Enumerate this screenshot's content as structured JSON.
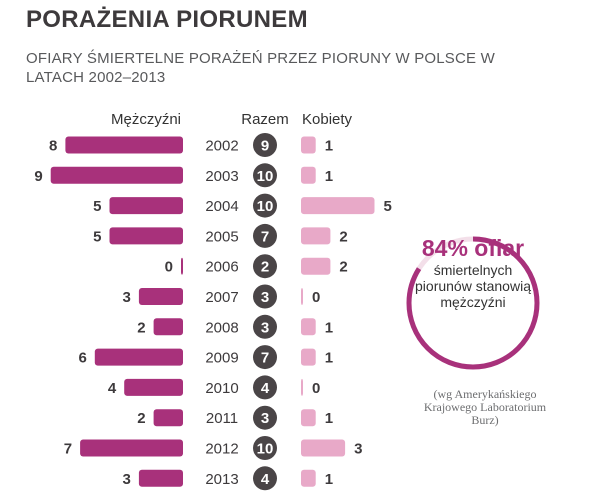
{
  "title": "PORAŻENIA PIORUNEM",
  "subtitle": "OFIARY ŚMIERTELNE PORAŻEŃ PRZEZ PIORUNY W POLSCE W LATACH 2002–2013",
  "colors": {
    "men": "#a8317b",
    "women": "#e8a9c8",
    "total_circle": "#4a4547",
    "ring": "#a8317b"
  },
  "chart_data": {
    "type": "bar",
    "categories": [
      "2002",
      "2003",
      "2004",
      "2005",
      "2006",
      "2007",
      "2008",
      "2009",
      "2010",
      "2011",
      "2012",
      "2013"
    ],
    "column_headers": {
      "men": "Mężczyźni",
      "total": "Razem",
      "women": "Kobiety"
    },
    "series": [
      {
        "name": "Mężczyźni",
        "values": [
          8,
          9,
          5,
          5,
          0,
          3,
          2,
          6,
          4,
          2,
          7,
          3
        ]
      },
      {
        "name": "Razem",
        "values": [
          9,
          10,
          10,
          7,
          2,
          3,
          3,
          7,
          4,
          3,
          10,
          4
        ]
      },
      {
        "name": "Kobiety",
        "values": [
          1,
          1,
          5,
          2,
          2,
          0,
          1,
          1,
          0,
          1,
          3,
          1
        ]
      }
    ]
  },
  "note": {
    "percent": "84% ofiar",
    "line1": "śmiertelnych",
    "line2": "piorunów stanowią",
    "line3": "mężczyźni",
    "ring_fraction": 0.84
  },
  "source": {
    "line1": "(wg Amerykańskiego",
    "line2": "Krajowego Laboratorium",
    "line3": "Burz)"
  }
}
